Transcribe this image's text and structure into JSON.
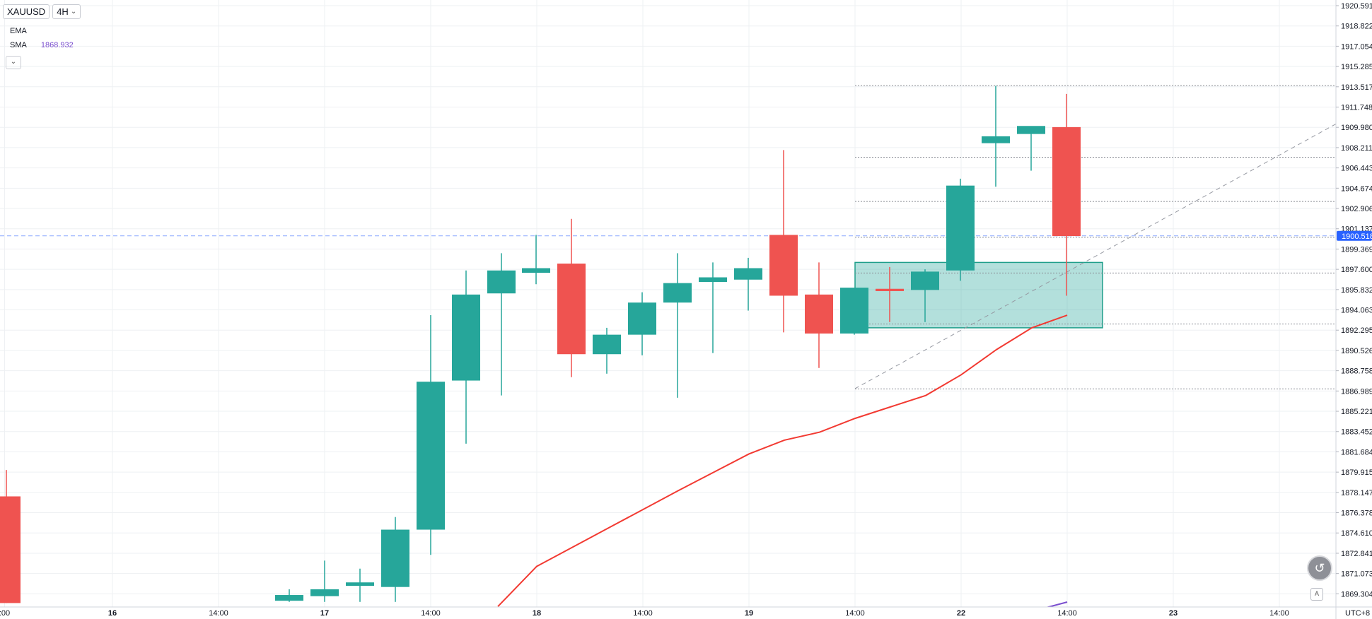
{
  "symbol": "XAUUSD",
  "interval": "4H",
  "indicators": [
    {
      "name": "EMA",
      "value": ""
    },
    {
      "name": "SMA",
      "value": "1868.932"
    }
  ],
  "timezone": "UTC+8",
  "current_price": "1900.518",
  "colors": {
    "up": "#26a69a",
    "down": "#ef5350",
    "ma": "#f23a32",
    "fib_box": "#26a69a",
    "price_line": "#2962ff"
  },
  "icons": [
    "undo-arrow-icon",
    "auto-scale-icon",
    "chevron-down-icon"
  ],
  "chart_data": {
    "type": "candlestick",
    "y_ticks": [
      "1920.591",
      "1918.822",
      "1917.054",
      "1915.285",
      "1913.517",
      "1911.748",
      "1909.980",
      "1908.211",
      "1906.443",
      "1904.674",
      "1902.906",
      "1901.137",
      "1899.369",
      "1897.600",
      "1895.832",
      "1894.063",
      "1892.295",
      "1890.526",
      "1888.758",
      "1886.989",
      "1885.221",
      "1883.452",
      "1881.684",
      "1879.915",
      "1878.147",
      "1876.378",
      "1874.610",
      "1872.841",
      "1871.073",
      "1869.304"
    ],
    "x_ticks": [
      {
        "label": ":00",
        "t": -0.05
      },
      {
        "label": "16",
        "t": 3
      },
      {
        "label": "14:00",
        "t": 6
      },
      {
        "label": "17",
        "t": 9
      },
      {
        "label": "14:00",
        "t": 12
      },
      {
        "label": "18",
        "t": 15
      },
      {
        "label": "14:00",
        "t": 18
      },
      {
        "label": "19",
        "t": 21
      },
      {
        "label": "14:00",
        "t": 24
      },
      {
        "label": "22",
        "t": 27
      },
      {
        "label": "14:00",
        "t": 30
      },
      {
        "label": "23",
        "t": 33
      },
      {
        "label": "14:00",
        "t": 36
      }
    ],
    "candles": [
      {
        "t": 0,
        "o": 1877.8,
        "h": 1880.1,
        "l": 1868.5,
        "c": 1868.5
      },
      {
        "t": 8,
        "o": 1868.7,
        "h": 1869.7,
        "l": 1868.6,
        "c": 1869.2
      },
      {
        "t": 9,
        "o": 1869.1,
        "h": 1872.2,
        "l": 1868.6,
        "c": 1869.7
      },
      {
        "t": 10,
        "o": 1870.0,
        "h": 1871.5,
        "l": 1868.6,
        "c": 1870.3
      },
      {
        "t": 11,
        "o": 1869.9,
        "h": 1876.0,
        "l": 1868.6,
        "c": 1874.9
      },
      {
        "t": 12,
        "o": 1874.9,
        "h": 1893.6,
        "l": 1872.7,
        "c": 1887.8
      },
      {
        "t": 13,
        "o": 1887.9,
        "h": 1897.5,
        "l": 1882.4,
        "c": 1895.4
      },
      {
        "t": 14,
        "o": 1895.5,
        "h": 1899.0,
        "l": 1886.6,
        "c": 1897.5
      },
      {
        "t": 14.98,
        "o": 1897.3,
        "h": 1900.6,
        "l": 1896.3,
        "c": 1897.7
      },
      {
        "t": 15.98,
        "o": 1898.1,
        "h": 1902.0,
        "l": 1888.2,
        "c": 1890.2
      },
      {
        "t": 16.98,
        "o": 1890.2,
        "h": 1892.5,
        "l": 1888.5,
        "c": 1891.9
      },
      {
        "t": 17.98,
        "o": 1891.9,
        "h": 1895.6,
        "l": 1890.1,
        "c": 1894.7
      },
      {
        "t": 18.98,
        "o": 1894.7,
        "h": 1899.0,
        "l": 1886.4,
        "c": 1896.4
      },
      {
        "t": 19.98,
        "o": 1896.5,
        "h": 1898.2,
        "l": 1890.3,
        "c": 1896.9
      },
      {
        "t": 20.98,
        "o": 1896.7,
        "h": 1898.6,
        "l": 1894.0,
        "c": 1897.7
      },
      {
        "t": 21.98,
        "o": 1900.6,
        "h": 1908.0,
        "l": 1892.1,
        "c": 1895.3
      },
      {
        "t": 22.98,
        "o": 1895.4,
        "h": 1898.2,
        "l": 1889.0,
        "c": 1892.0
      },
      {
        "t": 23.98,
        "o": 1892.0,
        "h": 1896.0,
        "l": 1891.9,
        "c": 1896.0
      },
      {
        "t": 24.98,
        "o": 1895.9,
        "h": 1897.8,
        "l": 1893.0,
        "c": 1895.7
      },
      {
        "t": 25.98,
        "o": 1895.8,
        "h": 1897.6,
        "l": 1893.0,
        "c": 1897.4
      },
      {
        "t": 26.98,
        "o": 1897.5,
        "h": 1905.5,
        "l": 1896.6,
        "c": 1904.9
      },
      {
        "t": 27.98,
        "o": 1908.6,
        "h": 1913.6,
        "l": 1904.8,
        "c": 1909.2
      },
      {
        "t": 28.98,
        "o": 1909.4,
        "h": 1910.0,
        "l": 1906.2,
        "c": 1910.1
      },
      {
        "t": 29.98,
        "o": 1910.0,
        "h": 1912.9,
        "l": 1895.3,
        "c": 1900.5
      }
    ],
    "ma_line": [
      {
        "t": 13.9,
        "v": 1868.2
      },
      {
        "t": 15,
        "v": 1871.7
      },
      {
        "t": 17,
        "v": 1875.0
      },
      {
        "t": 19,
        "v": 1878.3
      },
      {
        "t": 21,
        "v": 1881.5
      },
      {
        "t": 22,
        "v": 1882.7
      },
      {
        "t": 23,
        "v": 1883.4
      },
      {
        "t": 24,
        "v": 1884.6
      },
      {
        "t": 25,
        "v": 1885.6
      },
      {
        "t": 26,
        "v": 1886.6
      },
      {
        "t": 27,
        "v": 1888.4
      },
      {
        "t": 28,
        "v": 1890.6
      },
      {
        "t": 29,
        "v": 1892.5
      },
      {
        "t": 30,
        "v": 1893.6
      }
    ],
    "fib": {
      "t_start": 24,
      "t_end": 39.5,
      "high": 1913.62,
      "low": 1887.17,
      "levels": [
        "0.000",
        "23.600",
        "38.200",
        "50.000",
        "61.800",
        "78.600",
        "100.000"
      ],
      "ratios": [
        0,
        0.236,
        0.382,
        0.5,
        0.618,
        0.786,
        1
      ],
      "trend_from": {
        "t": 24,
        "v": 1887.2
      },
      "trend_to": {
        "t": 39.5,
        "v": 1913.5
      }
    },
    "zone": {
      "t_start": 24,
      "t_end": 31,
      "top": 1898.2,
      "bottom": 1892.5
    },
    "price_line": 1900.518,
    "ylim": [
      1868.27,
      1921.15
    ]
  }
}
